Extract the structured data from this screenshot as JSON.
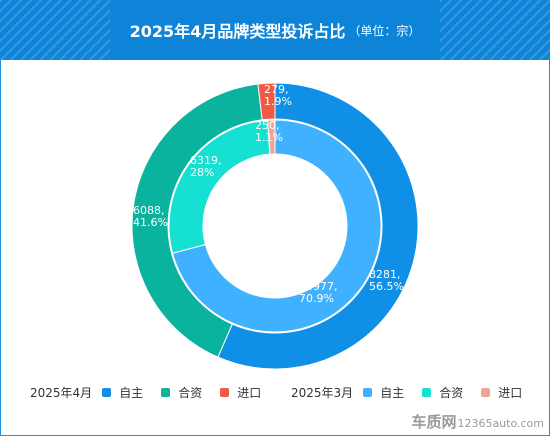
{
  "header": {
    "title": "2025年4月品牌类型投诉占比",
    "unit": "（单位：宗）"
  },
  "colors": {
    "header_bg": "#0e84d8",
    "april_domestic": "#0f8fe6",
    "april_jv": "#0ab39e",
    "april_import": "#ef5a46",
    "march_domestic": "#40b1ff",
    "march_jv": "#15e0d2",
    "march_import": "#f2a597"
  },
  "legend": {
    "group_april": "2025年4月",
    "group_march": "2025年3月",
    "items_april": [
      {
        "label": "自主",
        "color": "#0f8fe6"
      },
      {
        "label": "合资",
        "color": "#0ab39e"
      },
      {
        "label": "进口",
        "color": "#ef5a46"
      }
    ],
    "items_march": [
      {
        "label": "自主",
        "color": "#40b1ff"
      },
      {
        "label": "合资",
        "color": "#15e0d2"
      },
      {
        "label": "进口",
        "color": "#f2a597"
      }
    ]
  },
  "chart_data": {
    "type": "pie",
    "variant": "nested-donut",
    "title": "2025年4月品牌类型投诉占比",
    "subtitle": "（单位：宗）",
    "categories": [
      "自主",
      "合资",
      "进口"
    ],
    "series": [
      {
        "name": "2025年4月",
        "ring": "outer",
        "values": [
          8281,
          6088,
          279
        ],
        "percent_labels": [
          "56.5%",
          "41.6%",
          "1.9%"
        ],
        "value_labels": [
          "8281,",
          "6088,",
          "279,"
        ],
        "colors": [
          "#0f8fe6",
          "#0ab39e",
          "#ef5a46"
        ]
      },
      {
        "name": "2025年3月",
        "ring": "inner",
        "values": [
          15977,
          6319,
          250
        ],
        "percent_labels": [
          "70.9%",
          "28%",
          "1.1%"
        ],
        "value_labels": [
          "15977,",
          "6319,",
          "250,"
        ],
        "colors": [
          "#40b1ff",
          "#15e0d2",
          "#f2a597"
        ]
      }
    ],
    "legend_position": "bottom"
  },
  "watermark": {
    "brand": "车质网",
    "url": "12365auto.com"
  }
}
